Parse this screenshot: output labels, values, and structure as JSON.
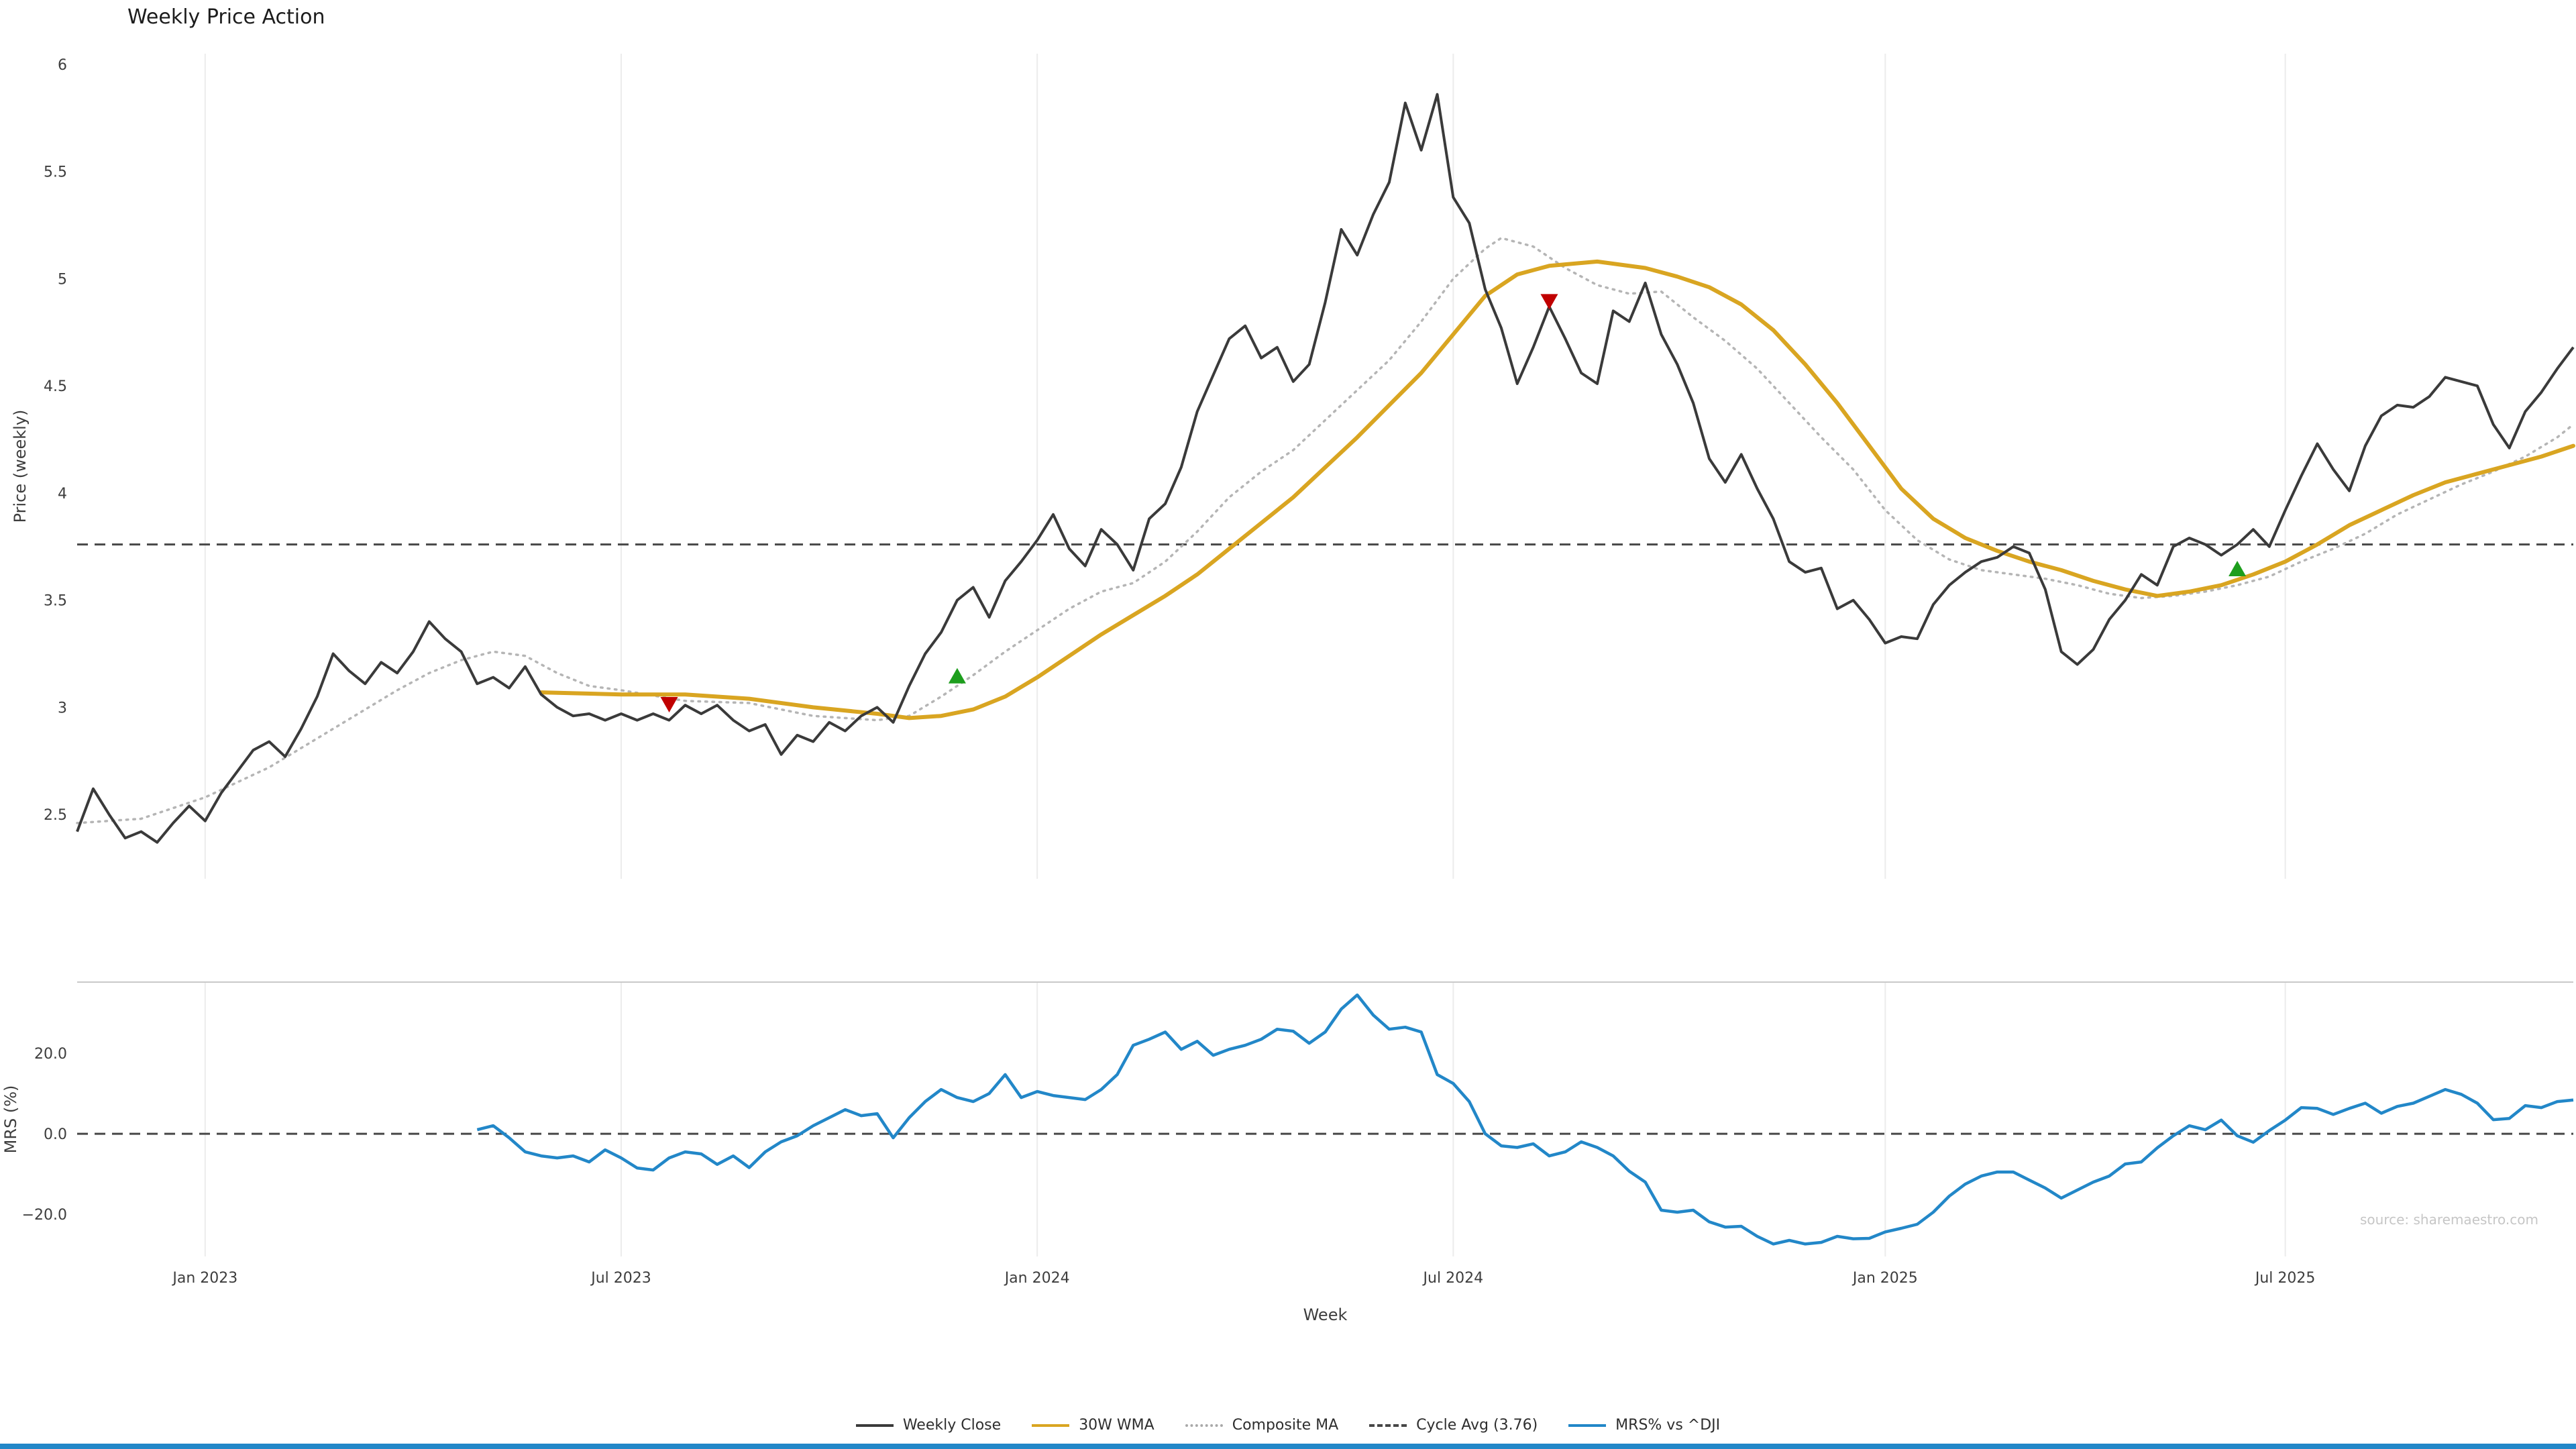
{
  "title": "Weekly Price Action",
  "source": "source: sharemaestro.com",
  "colors": {
    "close": "#3a3a3a",
    "wma": "#d9a521",
    "composite": "#b5b5b5",
    "cycle_avg": "#474747",
    "mrs": "#2287c8",
    "buy": "#1d9e1d",
    "sell": "#c00000",
    "grid": "#ececec",
    "spine": "#c9c9c9",
    "tick_text": "#3d3d3d",
    "source_text": "#c6c6c6",
    "accent_strip": "#2287c8"
  },
  "legend": {
    "items": [
      {
        "label": "Weekly Close",
        "color": "#3a3a3a",
        "line": "solid"
      },
      {
        "label": "30W WMA",
        "color": "#d9a521",
        "line": "solid"
      },
      {
        "label": "Composite MA",
        "color": "#a9a9a9",
        "line": "dotted"
      },
      {
        "label": "Cycle Avg (3.76)",
        "color": "#474747",
        "line": "dashed"
      },
      {
        "label": "MRS% vs ^DJI",
        "color": "#2287c8",
        "line": "solid"
      }
    ]
  },
  "chart_data": [
    {
      "name": "price_panel",
      "type": "line",
      "title": "Weekly Price Action",
      "xlabel": "Week",
      "ylabel": "Price (weekly)",
      "x_tick_labels": [
        "Jan 2023",
        "Jul 2023",
        "Jan 2024",
        "Jul 2024",
        "Jan 2025",
        "Jul 2025"
      ],
      "x_tick_indices": [
        8,
        34,
        60,
        86,
        113,
        138
      ],
      "n_points": 157,
      "ylim": [
        2.2,
        6.05
      ],
      "yticks": [
        2.5,
        3,
        3.5,
        4,
        4.5,
        5,
        5.5,
        6
      ],
      "ytick_labels": [
        "2.5",
        "3",
        "3.5",
        "4",
        "4.5",
        "5",
        "5.5",
        "6"
      ],
      "grid": "vertical",
      "legend_position": "bottom-center",
      "series": [
        {
          "name": "Weekly Close",
          "style": "solid",
          "color": "#3a3a3a",
          "values": [
            2.42,
            2.62,
            2.5,
            2.39,
            2.42,
            2.37,
            2.46,
            2.54,
            2.47,
            2.6,
            2.7,
            2.8,
            2.84,
            2.77,
            2.9,
            3.05,
            3.25,
            3.17,
            3.11,
            3.21,
            3.16,
            3.26,
            3.4,
            3.32,
            3.26,
            3.11,
            3.14,
            3.09,
            3.19,
            3.06,
            3.0,
            2.96,
            2.97,
            2.94,
            2.97,
            2.94,
            2.97,
            2.94,
            3.01,
            2.97,
            3.01,
            2.94,
            2.89,
            2.92,
            2.78,
            2.87,
            2.84,
            2.93,
            2.89,
            2.96,
            3.0,
            2.93,
            3.1,
            3.25,
            3.35,
            3.5,
            3.56,
            3.42,
            3.59,
            3.68,
            3.78,
            3.9,
            3.74,
            3.66,
            3.83,
            3.76,
            3.64,
            3.88,
            3.95,
            4.12,
            4.38,
            4.55,
            4.72,
            4.78,
            4.63,
            4.68,
            4.52,
            4.6,
            4.89,
            5.23,
            5.11,
            5.3,
            5.45,
            5.82,
            5.6,
            5.86,
            5.38,
            5.26,
            4.95,
            4.77,
            4.51,
            4.68,
            4.87,
            4.72,
            4.56,
            4.51,
            4.85,
            4.8,
            4.98,
            4.74,
            4.6,
            4.42,
            4.16,
            4.05,
            4.18,
            4.02,
            3.88,
            3.68,
            3.63,
            3.65,
            3.46,
            3.5,
            3.41,
            3.3,
            3.33,
            3.32,
            3.48,
            3.57,
            3.63,
            3.68,
            3.7,
            3.75,
            3.72,
            3.55,
            3.26,
            3.2,
            3.27,
            3.41,
            3.5,
            3.62,
            3.57,
            3.75,
            3.79,
            3.76,
            3.71,
            3.76,
            3.83,
            3.75,
            3.92,
            4.08,
            4.23,
            4.11,
            4.01,
            4.22,
            4.36,
            4.41,
            4.4,
            4.45,
            4.54,
            4.52,
            4.5,
            4.32,
            4.21,
            4.38,
            4.47,
            4.58,
            4.68
          ]
        },
        {
          "name": "30W WMA",
          "style": "solid",
          "color": "#d9a521",
          "points": [
            [
              29,
              3.07
            ],
            [
              34,
              3.06
            ],
            [
              38,
              3.06
            ],
            [
              42,
              3.04
            ],
            [
              46,
              3.0
            ],
            [
              50,
              2.97
            ],
            [
              52,
              2.95
            ],
            [
              54,
              2.96
            ],
            [
              56,
              2.99
            ],
            [
              58,
              3.05
            ],
            [
              60,
              3.14
            ],
            [
              62,
              3.24
            ],
            [
              64,
              3.34
            ],
            [
              66,
              3.43
            ],
            [
              68,
              3.52
            ],
            [
              70,
              3.62
            ],
            [
              72,
              3.74
            ],
            [
              74,
              3.86
            ],
            [
              76,
              3.98
            ],
            [
              78,
              4.12
            ],
            [
              80,
              4.26
            ],
            [
              82,
              4.41
            ],
            [
              84,
              4.56
            ],
            [
              86,
              4.74
            ],
            [
              88,
              4.92
            ],
            [
              90,
              5.02
            ],
            [
              92,
              5.06
            ],
            [
              95,
              5.08
            ],
            [
              98,
              5.05
            ],
            [
              100,
              5.01
            ],
            [
              102,
              4.96
            ],
            [
              104,
              4.88
            ],
            [
              106,
              4.76
            ],
            [
              108,
              4.6
            ],
            [
              110,
              4.42
            ],
            [
              112,
              4.22
            ],
            [
              114,
              4.02
            ],
            [
              116,
              3.88
            ],
            [
              118,
              3.79
            ],
            [
              120,
              3.73
            ],
            [
              122,
              3.68
            ],
            [
              124,
              3.64
            ],
            [
              126,
              3.59
            ],
            [
              128,
              3.55
            ],
            [
              130,
              3.52
            ],
            [
              132,
              3.54
            ],
            [
              134,
              3.57
            ],
            [
              136,
              3.62
            ],
            [
              138,
              3.68
            ],
            [
              140,
              3.76
            ],
            [
              142,
              3.85
            ],
            [
              144,
              3.92
            ],
            [
              146,
              3.99
            ],
            [
              148,
              4.05
            ],
            [
              150,
              4.09
            ],
            [
              152,
              4.13
            ],
            [
              154,
              4.17
            ],
            [
              156,
              4.22
            ]
          ]
        },
        {
          "name": "Composite MA",
          "style": "dotted",
          "color": "#b5b5b5",
          "points": [
            [
              0,
              2.46
            ],
            [
              4,
              2.48
            ],
            [
              8,
              2.58
            ],
            [
              12,
              2.72
            ],
            [
              16,
              2.9
            ],
            [
              20,
              3.08
            ],
            [
              22,
              3.16
            ],
            [
              24,
              3.22
            ],
            [
              26,
              3.26
            ],
            [
              28,
              3.24
            ],
            [
              30,
              3.16
            ],
            [
              32,
              3.1
            ],
            [
              34,
              3.08
            ],
            [
              38,
              3.03
            ],
            [
              42,
              3.02
            ],
            [
              46,
              2.96
            ],
            [
              50,
              2.94
            ],
            [
              52,
              2.96
            ],
            [
              54,
              3.05
            ],
            [
              56,
              3.15
            ],
            [
              58,
              3.26
            ],
            [
              60,
              3.36
            ],
            [
              62,
              3.46
            ],
            [
              64,
              3.54
            ],
            [
              66,
              3.58
            ],
            [
              68,
              3.68
            ],
            [
              70,
              3.82
            ],
            [
              72,
              3.98
            ],
            [
              74,
              4.1
            ],
            [
              76,
              4.2
            ],
            [
              78,
              4.34
            ],
            [
              80,
              4.48
            ],
            [
              82,
              4.62
            ],
            [
              84,
              4.8
            ],
            [
              86,
              5.0
            ],
            [
              88,
              5.14
            ],
            [
              89,
              5.19
            ],
            [
              91,
              5.15
            ],
            [
              93,
              5.05
            ],
            [
              95,
              4.97
            ],
            [
              97,
              4.93
            ],
            [
              99,
              4.94
            ],
            [
              101,
              4.82
            ],
            [
              103,
              4.71
            ],
            [
              105,
              4.58
            ],
            [
              107,
              4.42
            ],
            [
              109,
              4.26
            ],
            [
              111,
              4.11
            ],
            [
              113,
              3.92
            ],
            [
              115,
              3.78
            ],
            [
              117,
              3.69
            ],
            [
              119,
              3.64
            ],
            [
              121,
              3.62
            ],
            [
              123,
              3.6
            ],
            [
              125,
              3.57
            ],
            [
              127,
              3.53
            ],
            [
              129,
              3.51
            ],
            [
              131,
              3.52
            ],
            [
              133,
              3.54
            ],
            [
              135,
              3.57
            ],
            [
              137,
              3.61
            ],
            [
              139,
              3.68
            ],
            [
              141,
              3.74
            ],
            [
              143,
              3.81
            ],
            [
              145,
              3.9
            ],
            [
              147,
              3.97
            ],
            [
              149,
              4.04
            ],
            [
              151,
              4.1
            ],
            [
              153,
              4.17
            ],
            [
              155,
              4.26
            ],
            [
              156,
              4.32
            ]
          ]
        },
        {
          "name": "Cycle Avg (3.76)",
          "style": "dashed",
          "color": "#474747",
          "value": 3.76
        }
      ],
      "markers": {
        "buy": [
          {
            "index": 55,
            "price": 3.14
          },
          {
            "index": 135,
            "price": 3.64
          }
        ],
        "sell": [
          {
            "index": 37,
            "price": 3.02
          },
          {
            "index": 92,
            "price": 4.9
          }
        ]
      }
    },
    {
      "name": "mrs_panel",
      "type": "line",
      "xlabel": "Week",
      "ylabel": "MRS (%)",
      "ylim": [
        -30.5,
        37.7
      ],
      "yticks": [
        -20,
        0,
        20
      ],
      "ytick_labels": [
        "−20.0",
        "0.0",
        "20.0"
      ],
      "zero_line": 0,
      "series": [
        {
          "name": "MRS% vs ^DJI",
          "style": "solid",
          "color": "#2287c8",
          "start_index": 25,
          "values": [
            1.0,
            2.0,
            -1.0,
            -4.5,
            -5.5,
            -6.0,
            -5.5,
            -7.0,
            -4.0,
            -6.0,
            -8.5,
            -9.0,
            -6.0,
            -4.5,
            -5.0,
            -7.6,
            -5.5,
            -8.4,
            -4.5,
            -2.0,
            -0.5,
            2.0,
            4.0,
            6.0,
            4.5,
            5.0,
            -1.0,
            4.0,
            8.0,
            11.0,
            9.0,
            8.0,
            10.0,
            14.7,
            9.0,
            10.5,
            9.5,
            9.0,
            8.5,
            11.0,
            14.7,
            22.0,
            23.5,
            25.3,
            21.0,
            23.0,
            19.5,
            21.0,
            22.0,
            23.5,
            26.0,
            25.5,
            22.5,
            25.3,
            31.0,
            34.5,
            29.5,
            26.0,
            26.5,
            25.3,
            14.7,
            12.5,
            8.0,
            0.0,
            -3.0,
            -3.4,
            -2.5,
            -5.5,
            -4.5,
            -2.0,
            -3.4,
            -5.5,
            -9.3,
            -12.0,
            -19.0,
            -19.5,
            -19.0,
            -21.9,
            -23.2,
            -23.0,
            -25.5,
            -27.4,
            -26.5,
            -27.4,
            -27.0,
            -25.5,
            -26.1,
            -26.0,
            -24.4,
            -23.5,
            -22.5,
            -19.5,
            -15.5,
            -12.5,
            -10.5,
            -9.5,
            -9.5,
            -11.5,
            -13.5,
            -16.0,
            -14.0,
            -12.0,
            -10.5,
            -7.5,
            -7.0,
            -3.5,
            -0.5,
            2.0,
            1.0,
            3.4,
            -0.5,
            -2.1,
            0.8,
            3.4,
            6.5,
            6.3,
            4.8,
            6.3,
            7.6,
            5.1,
            6.8,
            7.6,
            9.3,
            11.0,
            9.8,
            7.6,
            3.5,
            3.8,
            7.0,
            6.5,
            8.0,
            8.4
          ]
        }
      ]
    }
  ]
}
